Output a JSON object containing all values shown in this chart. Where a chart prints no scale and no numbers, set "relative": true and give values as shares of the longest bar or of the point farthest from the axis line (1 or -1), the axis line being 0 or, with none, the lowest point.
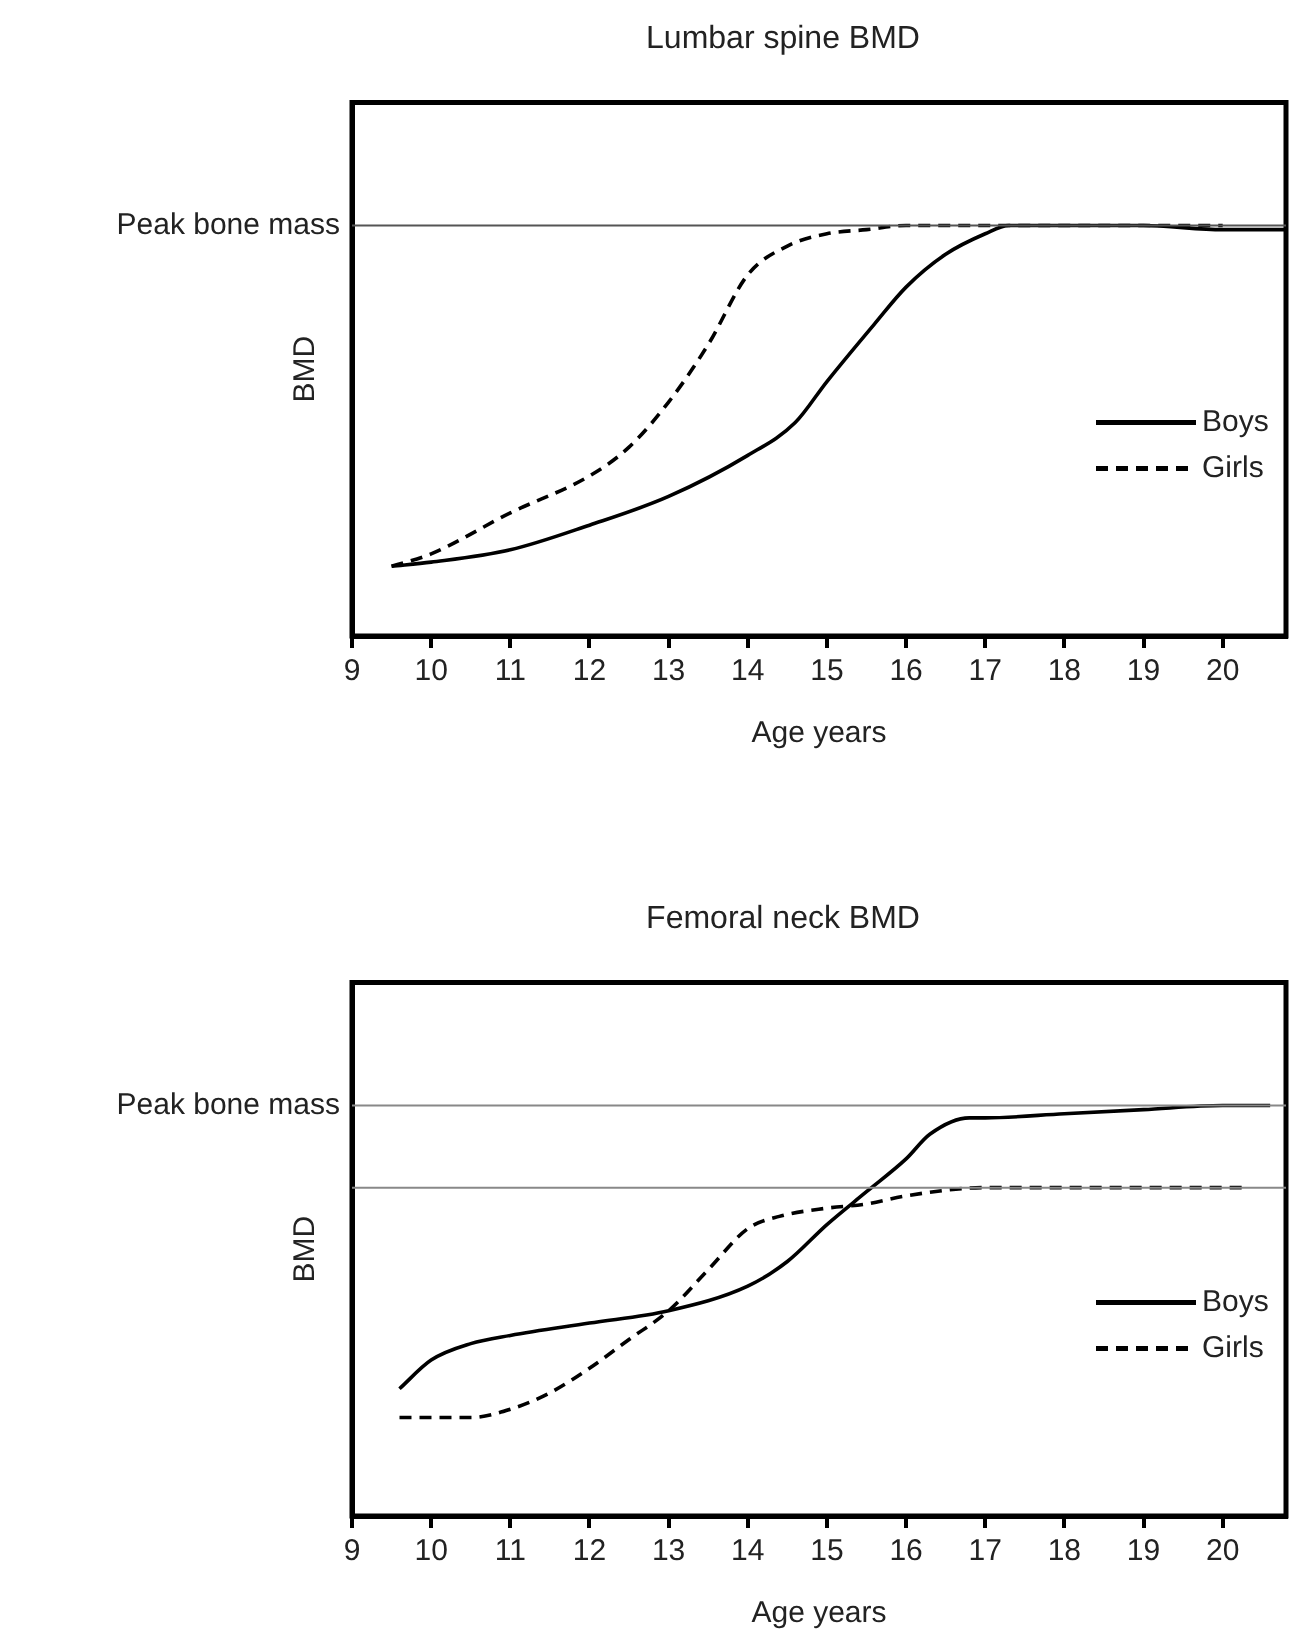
{
  "chart_data": [
    {
      "type": "line",
      "title": "Lumbar spine BMD",
      "xlabel": "Age years",
      "ylabel": "BMD",
      "relative": true,
      "xlim": [
        9,
        20.8
      ],
      "xticks": [
        9,
        10,
        11,
        12,
        13,
        14,
        15,
        16,
        17,
        18,
        19,
        20
      ],
      "grid": false,
      "legend": "right",
      "marker": "none",
      "ref_lines": [
        {
          "axis": "y",
          "value": 1,
          "label": "Peak bone mass",
          "color": "#555555"
        }
      ],
      "series": [
        {
          "name": "Boys",
          "color": "#000000",
          "line_style": "solid",
          "x": [
            9.5,
            10,
            11,
            12,
            13,
            14,
            14.6,
            15,
            15.6,
            16,
            16.5,
            17,
            17.3,
            18,
            19,
            20,
            20.8
          ],
          "values": [
            0.17,
            0.18,
            0.21,
            0.27,
            0.34,
            0.44,
            0.52,
            0.62,
            0.76,
            0.85,
            0.93,
            0.98,
            1.0,
            1.0,
            1.0,
            0.99,
            0.99
          ]
        },
        {
          "name": "Girls",
          "color": "#000000",
          "line_style": "dashed",
          "x": [
            9.5,
            10,
            11,
            12,
            12.5,
            13,
            13.5,
            14,
            14.5,
            15,
            15.5,
            16,
            17,
            18,
            19,
            20
          ],
          "values": [
            0.17,
            0.2,
            0.3,
            0.39,
            0.46,
            0.57,
            0.71,
            0.88,
            0.95,
            0.98,
            0.99,
            1.0,
            1.0,
            1.0,
            1.0,
            1.0
          ]
        }
      ]
    },
    {
      "type": "line",
      "title": "Femoral neck BMD",
      "xlabel": "Age years",
      "ylabel": "BMD",
      "relative": true,
      "xlim": [
        9,
        20.8
      ],
      "xticks": [
        9,
        10,
        11,
        12,
        13,
        14,
        15,
        16,
        17,
        18,
        19,
        20
      ],
      "grid": false,
      "legend": "right",
      "marker": "none",
      "ref_lines": [
        {
          "axis": "y",
          "value": 1,
          "label": "Peak bone mass",
          "color": "#888888"
        },
        {
          "axis": "y",
          "value": 0.8,
          "label": null,
          "color": "#888888"
        }
      ],
      "series": [
        {
          "name": "Boys",
          "color": "#000000",
          "line_style": "solid",
          "x": [
            9.6,
            10,
            10.5,
            11,
            12,
            13,
            14,
            14.5,
            15,
            15.5,
            16,
            16.3,
            16.8,
            17,
            18,
            19,
            20,
            20.6
          ],
          "values": [
            0.31,
            0.38,
            0.42,
            0.44,
            0.47,
            0.5,
            0.56,
            0.62,
            0.71,
            0.79,
            0.87,
            0.93,
            0.97,
            0.97,
            0.98,
            0.99,
            1.0,
            1.0
          ]
        },
        {
          "name": "Girls",
          "color": "#000000",
          "line_style": "dashed",
          "x": [
            9.6,
            10,
            10.5,
            11,
            11.5,
            12,
            12.5,
            13,
            13.5,
            14,
            14.4,
            15,
            15.5,
            16,
            17,
            18,
            19,
            20.3
          ],
          "values": [
            0.24,
            0.24,
            0.24,
            0.26,
            0.3,
            0.36,
            0.43,
            0.5,
            0.6,
            0.7,
            0.73,
            0.75,
            0.76,
            0.78,
            0.8,
            0.8,
            0.8,
            0.8
          ]
        }
      ]
    }
  ]
}
